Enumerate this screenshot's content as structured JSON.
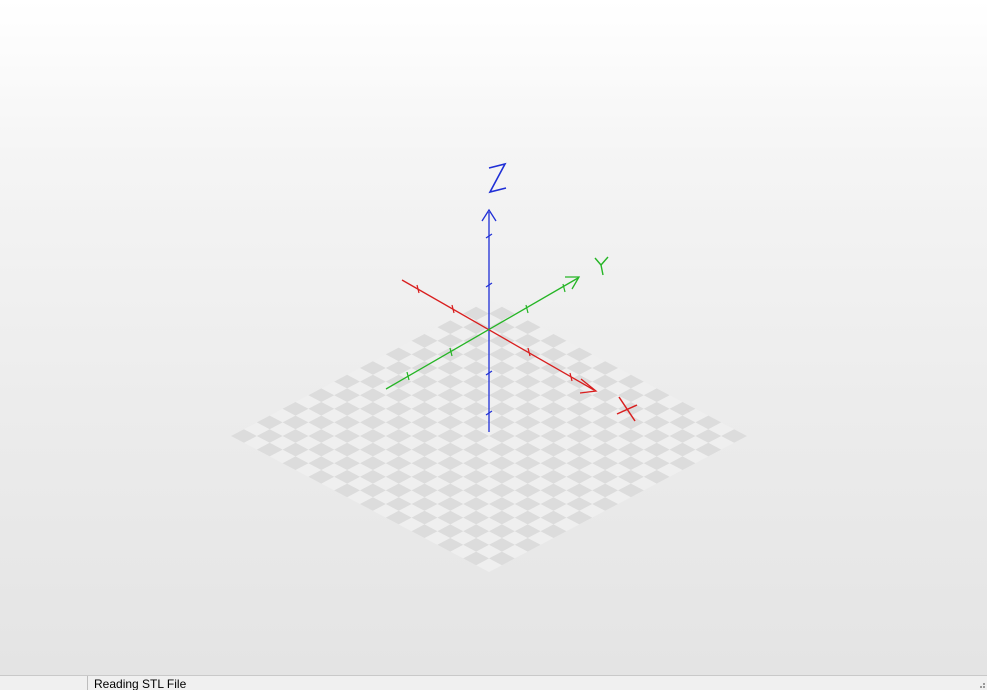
{
  "viewport": {
    "axes": {
      "x_label": "X",
      "y_label": "Y",
      "z_label": "Z",
      "x_color": "#d91e1e",
      "y_color": "#25b525",
      "z_color": "#1f2fd6"
    },
    "grid": {
      "checker_light": "#efefef",
      "checker_dark": "#dcdcdc",
      "cells": 20
    },
    "background": "gradient white to light gray"
  },
  "statusbar": {
    "progress_pane": "",
    "status_text": "Reading STL File",
    "size_grip_icon": "resize-grip-icon"
  }
}
